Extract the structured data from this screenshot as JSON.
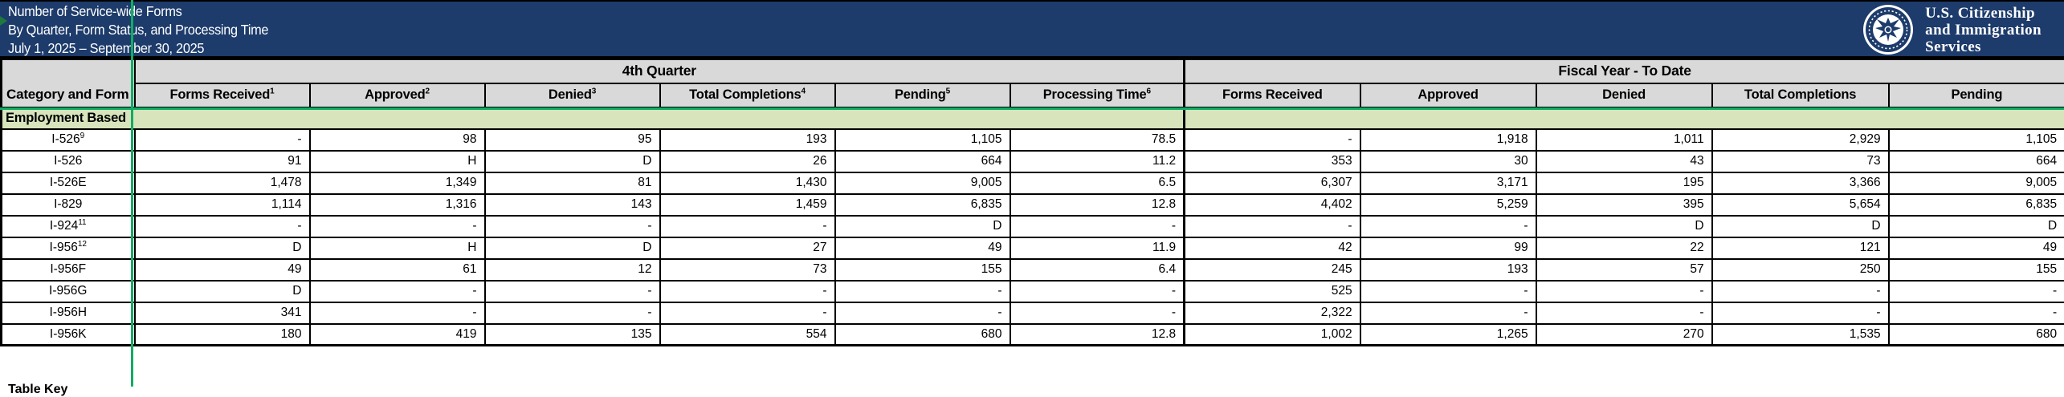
{
  "banner": {
    "title_lines": [
      "Number of Service-wide Forms",
      "By Quarter, Form Status, and Processing Time",
      "July 1, 2025 – September 30, 2025"
    ],
    "logo": {
      "name_line1": "U.S. Citizenship",
      "name_line2": "and Immigration",
      "name_line3": "Services",
      "seal_icon": "dhs-seal"
    }
  },
  "table": {
    "corner_header": "Category and Form",
    "groups": [
      {
        "label": "4th Quarter",
        "columns": [
          {
            "label": "Forms Received",
            "sup": "1"
          },
          {
            "label": "Approved",
            "sup": "2"
          },
          {
            "label": "Denied",
            "sup": "3"
          },
          {
            "label": "Total Completions",
            "sup": "4"
          },
          {
            "label": "Pending",
            "sup": "5"
          },
          {
            "label": "Processing Time",
            "sup": "6"
          }
        ]
      },
      {
        "label": "Fiscal Year - To Date",
        "columns": [
          {
            "label": "Forms Received",
            "sup": ""
          },
          {
            "label": "Approved",
            "sup": ""
          },
          {
            "label": "Denied",
            "sup": ""
          },
          {
            "label": "Total Completions",
            "sup": ""
          },
          {
            "label": "Pending",
            "sup": ""
          }
        ]
      }
    ],
    "section_label": "Employment Based",
    "rows": [
      {
        "form": "I-526",
        "sup": "9",
        "q4": [
          "-",
          "98",
          "95",
          "193",
          "1,105",
          "78.5"
        ],
        "fy": [
          "-",
          "1,918",
          "1,011",
          "2,929",
          "1,105"
        ]
      },
      {
        "form": "I-526",
        "sup": "",
        "q4": [
          "91",
          "H",
          "D",
          "26",
          "664",
          "11.2"
        ],
        "fy": [
          "353",
          "30",
          "43",
          "73",
          "664"
        ]
      },
      {
        "form": "I-526E",
        "sup": "",
        "q4": [
          "1,478",
          "1,349",
          "81",
          "1,430",
          "9,005",
          "6.5"
        ],
        "fy": [
          "6,307",
          "3,171",
          "195",
          "3,366",
          "9,005"
        ]
      },
      {
        "form": "I-829",
        "sup": "",
        "q4": [
          "1,114",
          "1,316",
          "143",
          "1,459",
          "6,835",
          "12.8"
        ],
        "fy": [
          "4,402",
          "5,259",
          "395",
          "5,654",
          "6,835"
        ]
      },
      {
        "form": "I-924",
        "sup": "11",
        "q4": [
          "-",
          "-",
          "-",
          "-",
          "D",
          "-"
        ],
        "fy": [
          "-",
          "-",
          "D",
          "D",
          "D"
        ]
      },
      {
        "form": "I-956",
        "sup": "12",
        "q4": [
          "D",
          "H",
          "D",
          "27",
          "49",
          "11.9"
        ],
        "fy": [
          "42",
          "99",
          "22",
          "121",
          "49"
        ]
      },
      {
        "form": "I-956F",
        "sup": "",
        "q4": [
          "49",
          "61",
          "12",
          "73",
          "155",
          "6.4"
        ],
        "fy": [
          "245",
          "193",
          "57",
          "250",
          "155"
        ]
      },
      {
        "form": "I-956G",
        "sup": "",
        "q4": [
          "D",
          "-",
          "-",
          "-",
          "-",
          "-"
        ],
        "fy": [
          "525",
          "-",
          "-",
          "-",
          "-"
        ]
      },
      {
        "form": "I-956H",
        "sup": "",
        "q4": [
          "341",
          "-",
          "-",
          "-",
          "-",
          "-"
        ],
        "fy": [
          "2,322",
          "-",
          "-",
          "-",
          "-"
        ]
      },
      {
        "form": "I-956K",
        "sup": "",
        "q4": [
          "180",
          "419",
          "135",
          "554",
          "680",
          "12.8"
        ],
        "fy": [
          "1,002",
          "1,265",
          "270",
          "1,535",
          "680"
        ]
      }
    ],
    "footer_partial": "Table Key"
  },
  "colors": {
    "banner_navy": "#1D3B6B",
    "header_gray": "#D9D9D9",
    "section_green": "#D7E4BC",
    "freeze_line_green": "#0FAD64",
    "border_black": "#000000"
  }
}
